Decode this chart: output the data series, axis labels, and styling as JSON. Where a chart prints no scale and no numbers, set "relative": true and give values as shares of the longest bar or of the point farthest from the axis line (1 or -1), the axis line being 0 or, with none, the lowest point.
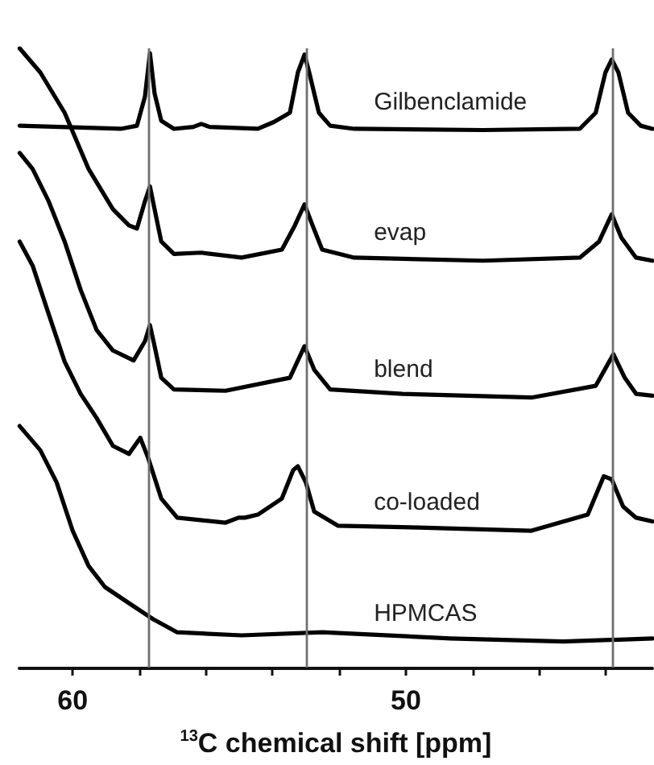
{
  "chart_data": {
    "type": "line",
    "relative": true,
    "xlabel": "$^{13}$C chemical shift [ppm]",
    "xlim": [
      61.6,
      42.6
    ],
    "xticks": [
      60,
      {
        "value": 58,
        "label": null
      },
      {
        "value": 56,
        "label": null
      },
      {
        "value": 54,
        "label": null
      },
      {
        "value": 52,
        "label": null
      },
      50,
      {
        "value": 48,
        "label": null
      },
      {
        "value": 46,
        "label": null
      },
      {
        "value": 44,
        "label": null
      }
    ],
    "grid": false,
    "legend": false,
    "line_style": "solid",
    "ref_lines": [
      {
        "axis": "x",
        "value": 57.7,
        "color": "#707070"
      },
      {
        "axis": "x",
        "value": 53.0,
        "color": "#707070"
      },
      {
        "axis": "x",
        "value": 43.8,
        "color": "#707070"
      }
    ],
    "series": [
      {
        "name": "Gilbenclamide",
        "color": "#000000",
        "x": [
          61.59,
          58.55,
          58.07,
          57.83,
          57.68,
          57.54,
          57.34,
          56.96,
          56.38,
          56.14,
          55.89,
          54.44,
          53.96,
          53.48,
          53.24,
          53.04,
          52.9,
          52.61,
          52.27,
          51.55,
          47.68,
          44.78,
          44.3,
          44.01,
          43.82,
          43.62,
          43.33,
          42.95,
          42.6
        ],
        "values": [
          0.875,
          0.87,
          0.875,
          0.922,
          0.992,
          0.927,
          0.883,
          0.87,
          0.873,
          0.878,
          0.873,
          0.87,
          0.881,
          0.896,
          0.961,
          0.99,
          0.961,
          0.896,
          0.875,
          0.87,
          0.868,
          0.87,
          0.896,
          0.961,
          0.982,
          0.961,
          0.896,
          0.875,
          0.87
        ]
      },
      {
        "name": "evap",
        "color": "#000000",
        "x": [
          61.59,
          60.97,
          60.24,
          59.52,
          58.79,
          58.31,
          58.07,
          57.83,
          57.68,
          57.54,
          57.34,
          56.96,
          56.14,
          54.93,
          53.72,
          53.33,
          53.04,
          52.8,
          52.51,
          51.55,
          47.68,
          44.78,
          44.2,
          43.82,
          43.53,
          43.09,
          42.6
        ],
        "values": [
          1.0,
          0.961,
          0.896,
          0.805,
          0.74,
          0.714,
          0.709,
          0.753,
          0.777,
          0.74,
          0.688,
          0.668,
          0.67,
          0.662,
          0.675,
          0.714,
          0.748,
          0.714,
          0.675,
          0.662,
          0.657,
          0.662,
          0.688,
          0.732,
          0.694,
          0.662,
          0.657
        ]
      },
      {
        "name": "blend",
        "color": "#000000",
        "x": [
          61.59,
          61.2,
          60.72,
          60.24,
          59.76,
          59.28,
          58.79,
          58.17,
          57.83,
          57.68,
          57.54,
          57.34,
          56.96,
          55.41,
          53.48,
          53.04,
          52.75,
          52.27,
          50.1,
          46.23,
          44.3,
          43.77,
          43.43,
          43.09,
          42.6
        ],
        "values": [
          0.831,
          0.805,
          0.753,
          0.688,
          0.61,
          0.545,
          0.512,
          0.496,
          0.527,
          0.553,
          0.519,
          0.468,
          0.449,
          0.447,
          0.468,
          0.519,
          0.481,
          0.449,
          0.442,
          0.436,
          0.455,
          0.506,
          0.468,
          0.442,
          0.439
        ]
      },
      {
        "name": "co-loaded",
        "color": "#000000",
        "x": [
          61.59,
          61.2,
          60.72,
          60.24,
          59.76,
          59.28,
          58.79,
          58.31,
          57.97,
          57.73,
          57.34,
          56.86,
          55.41,
          55.02,
          54.83,
          54.44,
          53.72,
          53.38,
          53.24,
          53.0,
          52.75,
          52.03,
          49.61,
          46.23,
          44.54,
          44.06,
          43.82,
          43.48,
          43.09,
          42.6
        ],
        "values": [
          0.688,
          0.649,
          0.571,
          0.494,
          0.442,
          0.403,
          0.358,
          0.345,
          0.371,
          0.338,
          0.273,
          0.242,
          0.234,
          0.242,
          0.242,
          0.247,
          0.273,
          0.319,
          0.325,
          0.299,
          0.252,
          0.229,
          0.226,
          0.221,
          0.247,
          0.309,
          0.304,
          0.26,
          0.242,
          0.236
        ]
      },
      {
        "name": "HPMCAS",
        "color": "#000000",
        "x": [
          61.59,
          60.97,
          60.48,
          60.0,
          59.52,
          59.03,
          58.31,
          57.58,
          56.86,
          54.93,
          52.51,
          48.65,
          45.27,
          42.6
        ],
        "values": [
          0.39,
          0.351,
          0.299,
          0.221,
          0.164,
          0.13,
          0.104,
          0.078,
          0.057,
          0.052,
          0.057,
          0.047,
          0.042,
          0.047
        ]
      }
    ]
  }
}
